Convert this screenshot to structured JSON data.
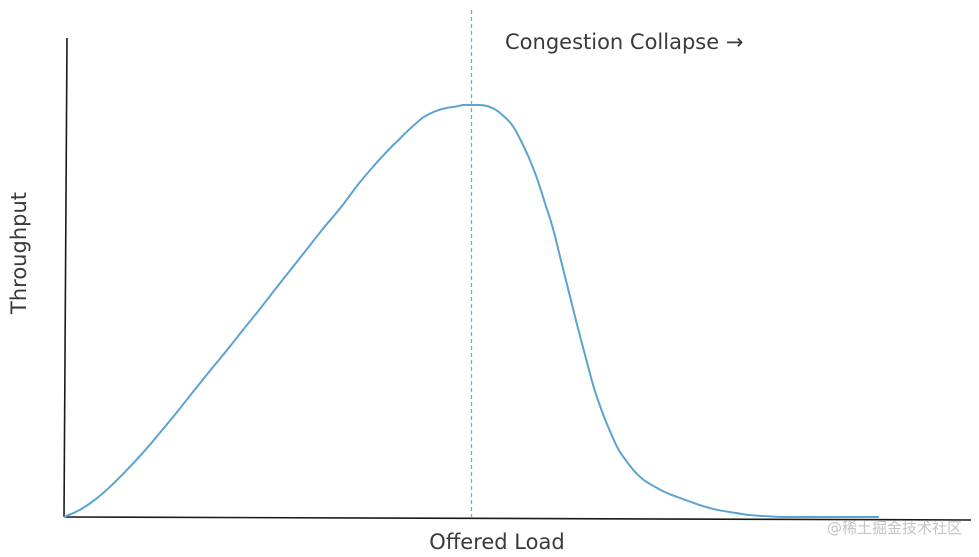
{
  "chart_data": {
    "type": "line",
    "title": "",
    "xlabel": "Offered Load",
    "ylabel": "Throughput",
    "xlim": [
      0,
      100
    ],
    "ylim": [
      0,
      100
    ],
    "axis_ticks": false,
    "grid": false,
    "series": [
      {
        "color": "#5ba3d0",
        "x": [
          0,
          2,
          4,
          6,
          8,
          10,
          12,
          14,
          16,
          18,
          20,
          22,
          24,
          26,
          28,
          30,
          32,
          34,
          36,
          38,
          40,
          41,
          42,
          43,
          44,
          45,
          46,
          47,
          48,
          49,
          50,
          51,
          52,
          53,
          54,
          55,
          56,
          57,
          58,
          59,
          60,
          61,
          62,
          63,
          64,
          65,
          66,
          67,
          68,
          69,
          70,
          71,
          72,
          73,
          74,
          76,
          78,
          80,
          82,
          84,
          86,
          88,
          90,
          92,
          94,
          96,
          98,
          100
        ],
        "y": [
          0,
          1.8,
          4.5,
          8,
          12,
          16.3,
          21,
          25.8,
          30.8,
          35.7,
          40.5,
          45.5,
          50.4,
          55.5,
          60.5,
          65.5,
          70.5,
          75.2,
          80.5,
          85.2,
          89.5,
          91.4,
          93.4,
          95.2,
          96.9,
          98.0,
          98.8,
          99.3,
          99.6,
          100.0,
          100.0,
          100.0,
          99.7,
          98.8,
          97.2,
          95.1,
          91.6,
          87.4,
          82.4,
          76.3,
          70.0,
          62.1,
          54.2,
          46.3,
          38.8,
          31.5,
          25.7,
          20.8,
          16.5,
          13.6,
          11.1,
          9.2,
          7.9,
          6.8,
          5.8,
          4.3,
          2.9,
          1.8,
          1.1,
          0.5,
          0.2,
          0.0,
          0.0,
          0.0,
          0.0,
          0.0,
          0.0,
          0.0
        ]
      }
    ],
    "annotations": [
      {
        "text": "Congestion Collapse →",
        "x": 50,
        "style": "dashed vertical line"
      }
    ]
  },
  "watermark": {
    "text": "@稀土掘金技术社区"
  }
}
